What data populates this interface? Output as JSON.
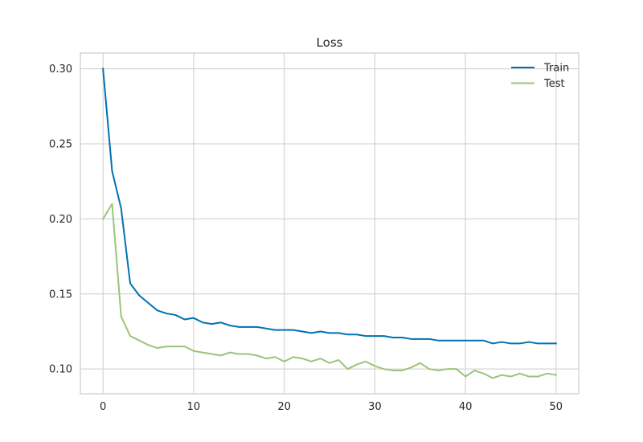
{
  "chart_data": {
    "type": "line",
    "title": "Loss",
    "xlabel": "",
    "ylabel": "",
    "xlim": [
      -2.5,
      52.5
    ],
    "ylim": [
      0.0835,
      0.3105
    ],
    "xticks": [
      0,
      10,
      20,
      30,
      40,
      50
    ],
    "yticks": [
      0.1,
      0.15,
      0.2,
      0.25,
      0.3
    ],
    "xtick_labels": [
      "0",
      "10",
      "20",
      "30",
      "40",
      "50"
    ],
    "ytick_labels": [
      "0.10",
      "0.15",
      "0.20",
      "0.25",
      "0.30"
    ],
    "grid": true,
    "legend_position": "top-right",
    "x": [
      0,
      1,
      2,
      3,
      4,
      5,
      6,
      7,
      8,
      9,
      10,
      11,
      12,
      13,
      14,
      15,
      16,
      17,
      18,
      19,
      20,
      21,
      22,
      23,
      24,
      25,
      26,
      27,
      28,
      29,
      30,
      31,
      32,
      33,
      34,
      35,
      36,
      37,
      38,
      39,
      40,
      41,
      42,
      43,
      44,
      45,
      46,
      47,
      48,
      49,
      50
    ],
    "series": [
      {
        "name": "Train",
        "color": "#0072B2",
        "values": [
          0.3,
          0.232,
          0.207,
          0.157,
          0.149,
          0.144,
          0.139,
          0.137,
          0.136,
          0.133,
          0.134,
          0.131,
          0.13,
          0.131,
          0.129,
          0.128,
          0.128,
          0.128,
          0.127,
          0.126,
          0.126,
          0.126,
          0.125,
          0.124,
          0.125,
          0.124,
          0.124,
          0.123,
          0.123,
          0.122,
          0.122,
          0.122,
          0.121,
          0.121,
          0.12,
          0.12,
          0.12,
          0.119,
          0.119,
          0.119,
          0.119,
          0.119,
          0.119,
          0.117,
          0.118,
          0.117,
          0.117,
          0.118,
          0.117,
          0.117,
          0.117
        ]
      },
      {
        "name": "Test",
        "color": "#9BC47A",
        "values": [
          0.2,
          0.21,
          0.135,
          0.122,
          0.119,
          0.116,
          0.114,
          0.115,
          0.115,
          0.115,
          0.112,
          0.111,
          0.11,
          0.109,
          0.111,
          0.11,
          0.11,
          0.109,
          0.107,
          0.108,
          0.105,
          0.108,
          0.107,
          0.105,
          0.107,
          0.104,
          0.106,
          0.1,
          0.103,
          0.105,
          0.102,
          0.1,
          0.099,
          0.099,
          0.101,
          0.104,
          0.1,
          0.099,
          0.1,
          0.1,
          0.095,
          0.099,
          0.097,
          0.094,
          0.096,
          0.095,
          0.097,
          0.095,
          0.095,
          0.097,
          0.096
        ]
      }
    ]
  },
  "colors": {
    "background": "#ffffff",
    "grid": "#cccccc",
    "axes_edge": "#cccccc",
    "text": "#262626"
  }
}
